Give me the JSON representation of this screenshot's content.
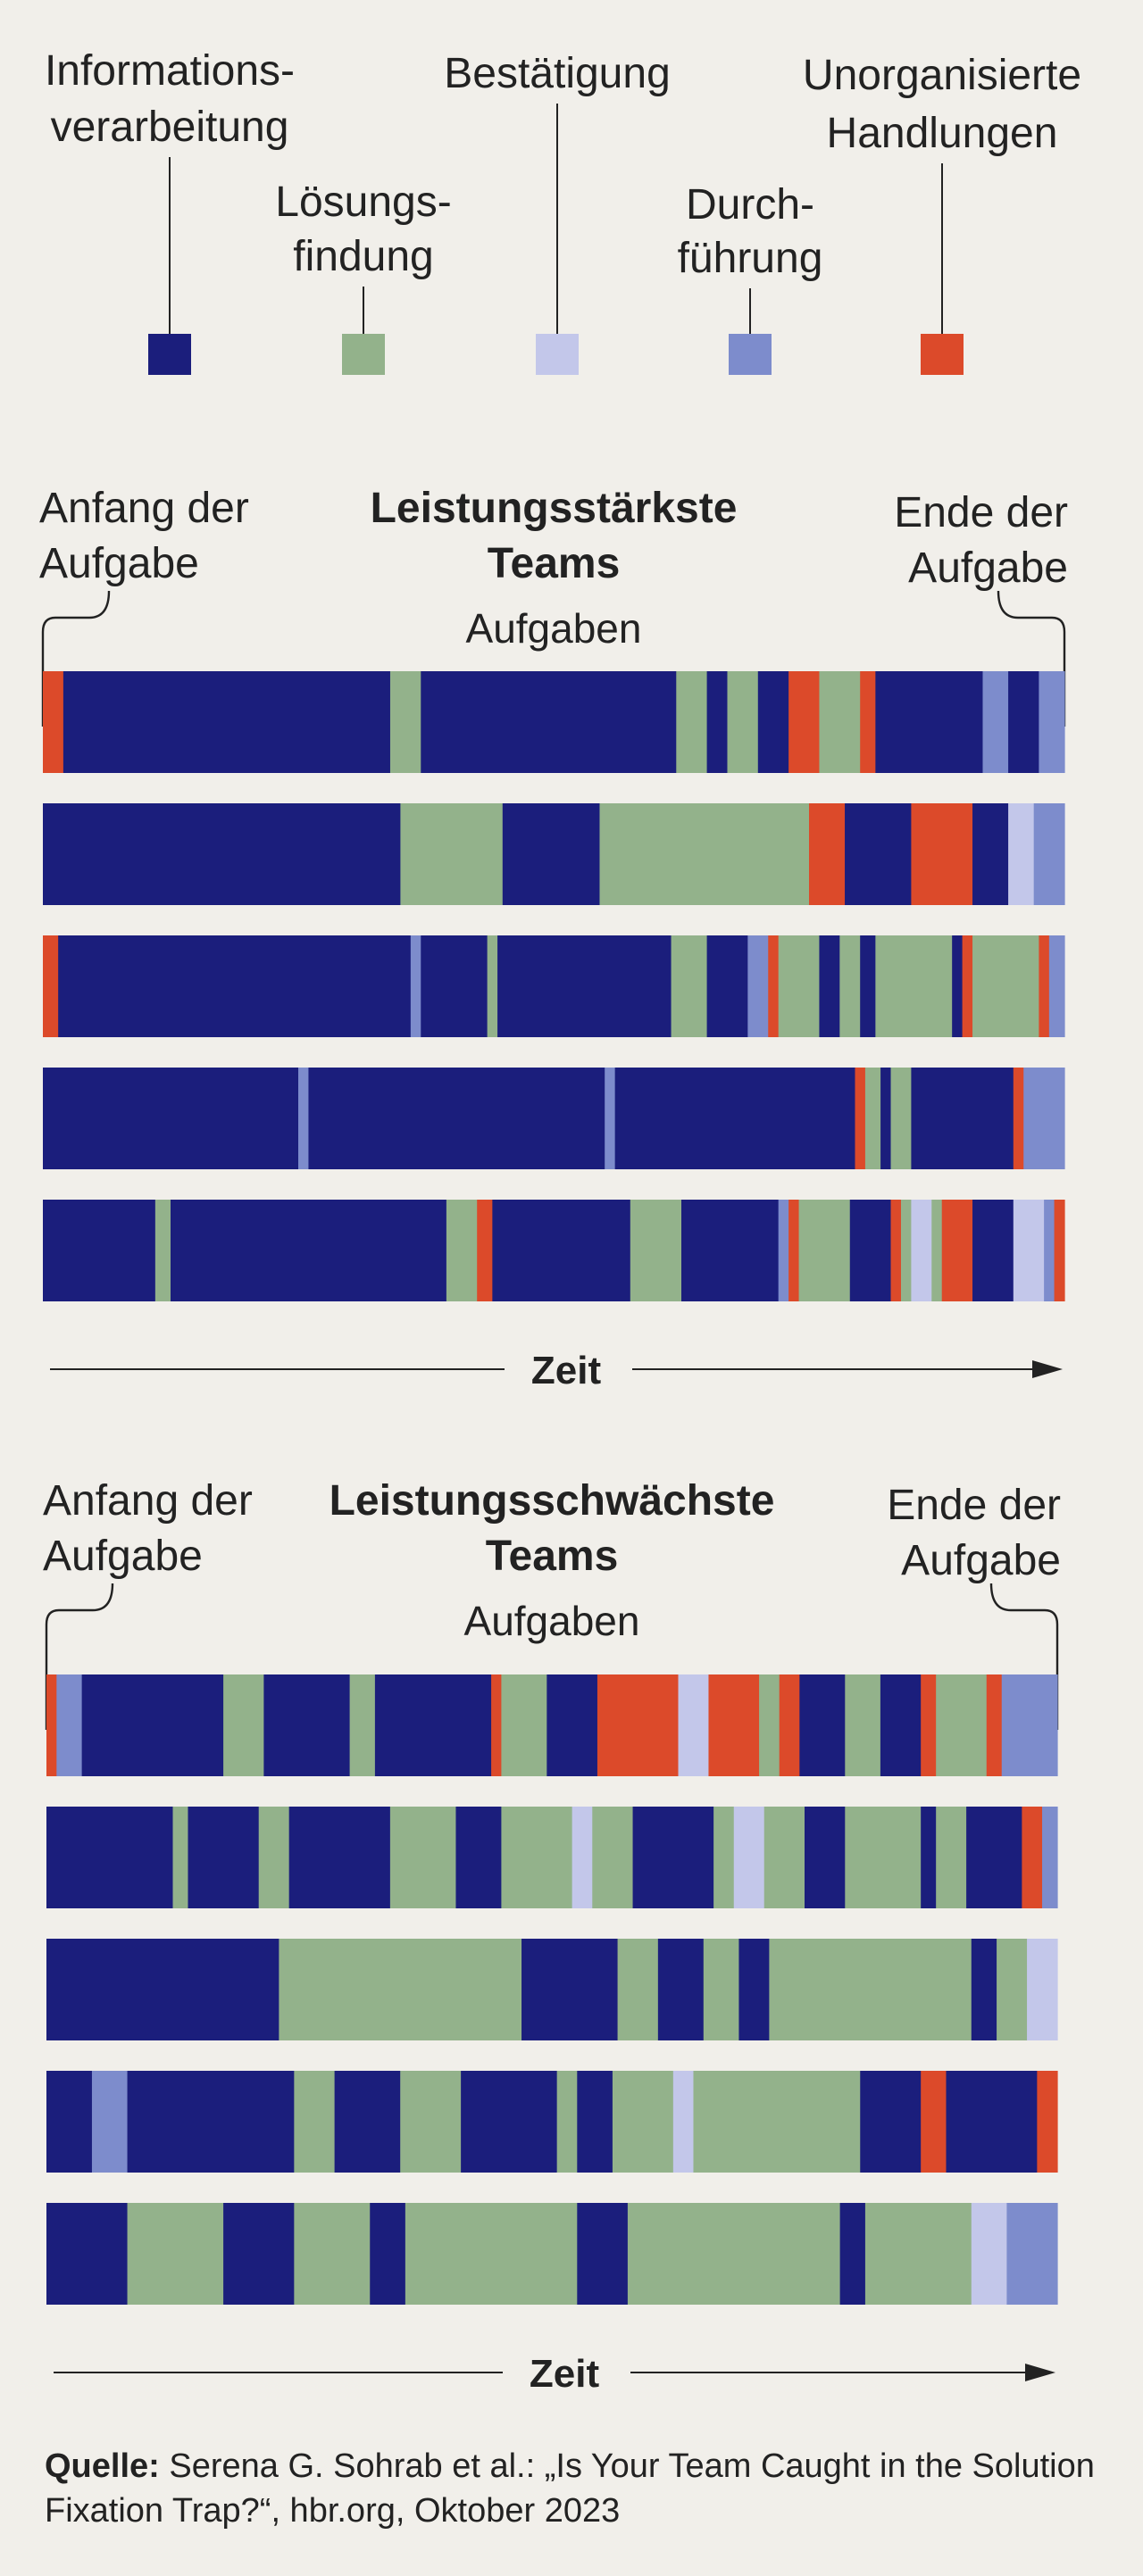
{
  "legend": [
    {
      "key": "info",
      "label_lines": [
        "Informations-",
        "verarbeitung"
      ],
      "color": "#1b1e7c"
    },
    {
      "key": "loes",
      "label_lines": [
        "Lösungs-",
        "findung"
      ],
      "color": "#93b28b"
    },
    {
      "key": "best",
      "label_lines": [
        "Bestätigung"
      ],
      "color": "#c3c7ea"
    },
    {
      "key": "durch",
      "label_lines": [
        "Durch-",
        "führung"
      ],
      "color": "#7d8ccc"
    },
    {
      "key": "unorg",
      "label_lines": [
        "Unorganisierte",
        "Handlungen"
      ],
      "color": "#dc4a2a"
    }
  ],
  "sections": [
    {
      "title_lines": [
        "Leistungsstärkste",
        "Teams"
      ],
      "subtitle": "Aufgaben",
      "start_label": [
        "Anfang der",
        "Aufgabe"
      ],
      "end_label": [
        "Ende der",
        "Aufgabe"
      ],
      "axis_label": "Zeit"
    },
    {
      "title_lines": [
        "Leistungsschwächste",
        "Teams"
      ],
      "subtitle": "Aufgaben",
      "start_label": [
        "Anfang der",
        "Aufgabe"
      ],
      "end_label": [
        "Ende der",
        "Aufgabe"
      ],
      "axis_label": "Zeit"
    }
  ],
  "source": {
    "prefix": "Quelle:",
    "text": " Serena G. Sohrab et al.: „Is Your Team Caught in the Solution Fixation Trap?“, hbr.org, Oktober 2023"
  },
  "chart_data": {
    "type": "timeline",
    "x_axis": "Zeit",
    "x_range": [
      0,
      100
    ],
    "x_unit": "approximate % of task duration",
    "groups": [
      {
        "name": "Leistungsstärkste Teams",
        "rows": [
          [
            [
              "unorg",
              0,
              2
            ],
            [
              "info",
              2,
              34
            ],
            [
              "loes",
              34,
              37
            ],
            [
              "info",
              37,
              62
            ],
            [
              "loes",
              62,
              65
            ],
            [
              "info",
              65,
              67
            ],
            [
              "loes",
              67,
              70
            ],
            [
              "info",
              70,
              73
            ],
            [
              "unorg",
              73,
              76
            ],
            [
              "loes",
              76,
              80
            ],
            [
              "unorg",
              80,
              81.5
            ],
            [
              "info",
              81.5,
              92
            ],
            [
              "durch",
              92,
              94.5
            ],
            [
              "info",
              94.5,
              97.5
            ],
            [
              "durch",
              97.5,
              100
            ]
          ],
          [
            [
              "info",
              0,
              35
            ],
            [
              "loes",
              35,
              45
            ],
            [
              "info",
              45,
              54.5
            ],
            [
              "loes",
              54.5,
              75
            ],
            [
              "unorg",
              75,
              78.5
            ],
            [
              "info",
              78.5,
              85
            ],
            [
              "unorg",
              85,
              91
            ],
            [
              "info",
              91,
              94.5
            ],
            [
              "best",
              94.5,
              97
            ],
            [
              "durch",
              97,
              100
            ]
          ],
          [
            [
              "unorg",
              0,
              1.5
            ],
            [
              "info",
              1.5,
              36
            ],
            [
              "durch",
              36,
              37
            ],
            [
              "info",
              37,
              43.5
            ],
            [
              "loes",
              43.5,
              44.5
            ],
            [
              "info",
              44.5,
              61.5
            ],
            [
              "loes",
              61.5,
              65
            ],
            [
              "info",
              65,
              69
            ],
            [
              "durch",
              69,
              71
            ],
            [
              "unorg",
              71,
              72
            ],
            [
              "loes",
              72,
              76
            ],
            [
              "info",
              76,
              78
            ],
            [
              "loes",
              78,
              80
            ],
            [
              "info",
              80,
              81.5
            ],
            [
              "loes",
              81.5,
              89
            ],
            [
              "info",
              89,
              90
            ],
            [
              "unorg",
              90,
              91
            ],
            [
              "loes",
              91,
              97.5
            ],
            [
              "unorg",
              97.5,
              98.5
            ],
            [
              "durch",
              98.5,
              100
            ]
          ],
          [
            [
              "info",
              0,
              25
            ],
            [
              "durch",
              25,
              26
            ],
            [
              "info",
              26,
              55
            ],
            [
              "durch",
              55,
              56
            ],
            [
              "info",
              56,
              79.5
            ],
            [
              "unorg",
              79.5,
              80.5
            ],
            [
              "loes",
              80.5,
              82
            ],
            [
              "info",
              82,
              83
            ],
            [
              "loes",
              83,
              85
            ],
            [
              "info",
              85,
              95
            ],
            [
              "unorg",
              95,
              96
            ],
            [
              "durch",
              96,
              100
            ]
          ],
          [
            [
              "info",
              0,
              11
            ],
            [
              "loes",
              11,
              12.5
            ],
            [
              "info",
              12.5,
              39.5
            ],
            [
              "loes",
              39.5,
              42.5
            ],
            [
              "unorg",
              42.5,
              44
            ],
            [
              "info",
              44,
              57.5
            ],
            [
              "loes",
              57.5,
              62.5
            ],
            [
              "info",
              62.5,
              72
            ],
            [
              "durch",
              72,
              73
            ],
            [
              "unorg",
              73,
              74
            ],
            [
              "loes",
              74,
              79
            ],
            [
              "info",
              79,
              83
            ],
            [
              "unorg",
              83,
              84
            ],
            [
              "loes",
              84,
              85
            ],
            [
              "best",
              85,
              87
            ],
            [
              "loes",
              87,
              88
            ],
            [
              "unorg",
              88,
              91
            ],
            [
              "info",
              91,
              95
            ],
            [
              "best",
              95,
              98
            ],
            [
              "durch",
              98,
              99
            ],
            [
              "unorg",
              99,
              100
            ]
          ]
        ]
      },
      {
        "name": "Leistungsschwächste Teams",
        "rows": [
          [
            [
              "unorg",
              0,
              1
            ],
            [
              "durch",
              1,
              3.5
            ],
            [
              "info",
              3.5,
              17.5
            ],
            [
              "loes",
              17.5,
              21.5
            ],
            [
              "info",
              21.5,
              30
            ],
            [
              "loes",
              30,
              32.5
            ],
            [
              "info",
              32.5,
              44
            ],
            [
              "unorg",
              44,
              45
            ],
            [
              "loes",
              45,
              49.5
            ],
            [
              "info",
              49.5,
              54.5
            ],
            [
              "unorg",
              54.5,
              62.5
            ],
            [
              "best",
              62.5,
              65.5
            ],
            [
              "unorg",
              65.5,
              70.5
            ],
            [
              "loes",
              70.5,
              72.5
            ],
            [
              "unorg",
              72.5,
              74.5
            ],
            [
              "info",
              74.5,
              79
            ],
            [
              "loes",
              79,
              82.5
            ],
            [
              "info",
              82.5,
              86.5
            ],
            [
              "unorg",
              86.5,
              88
            ],
            [
              "loes",
              88,
              93
            ],
            [
              "unorg",
              93,
              94.5
            ],
            [
              "durch",
              94.5,
              100
            ]
          ],
          [
            [
              "info",
              0,
              12.5
            ],
            [
              "loes",
              12.5,
              14
            ],
            [
              "info",
              14,
              21
            ],
            [
              "loes",
              21,
              24
            ],
            [
              "info",
              24,
              34
            ],
            [
              "loes",
              34,
              40.5
            ],
            [
              "info",
              40.5,
              45
            ],
            [
              "loes",
              45,
              52
            ],
            [
              "best",
              52,
              54
            ],
            [
              "loes",
              54,
              58
            ],
            [
              "info",
              58,
              66
            ],
            [
              "loes",
              66,
              68
            ],
            [
              "best",
              68,
              71
            ],
            [
              "loes",
              71,
              75
            ],
            [
              "info",
              75,
              79
            ],
            [
              "loes",
              79,
              86.5
            ],
            [
              "info",
              86.5,
              88
            ],
            [
              "loes",
              88,
              91
            ],
            [
              "info",
              91,
              96.5
            ],
            [
              "unorg",
              96.5,
              98.5
            ],
            [
              "durch",
              98.5,
              100
            ]
          ],
          [
            [
              "info",
              0,
              23
            ],
            [
              "loes",
              23,
              47
            ],
            [
              "info",
              47,
              56.5
            ],
            [
              "loes",
              56.5,
              60.5
            ],
            [
              "info",
              60.5,
              65
            ],
            [
              "loes",
              65,
              68.5
            ],
            [
              "info",
              68.5,
              71.5
            ],
            [
              "loes",
              71.5,
              91.5
            ],
            [
              "info",
              91.5,
              94
            ],
            [
              "loes",
              94,
              97
            ],
            [
              "best",
              97,
              100
            ]
          ],
          [
            [
              "info",
              0,
              4.5
            ],
            [
              "durch",
              4.5,
              8
            ],
            [
              "info",
              8,
              24.5
            ],
            [
              "loes",
              24.5,
              28.5
            ],
            [
              "info",
              28.5,
              35
            ],
            [
              "loes",
              35,
              41
            ],
            [
              "info",
              41,
              50.5
            ],
            [
              "loes",
              50.5,
              52.5
            ],
            [
              "info",
              52.5,
              56
            ],
            [
              "loes",
              56,
              62
            ],
            [
              "best",
              62,
              64
            ],
            [
              "loes",
              64,
              80.5
            ],
            [
              "info",
              80.5,
              86.5
            ],
            [
              "unorg",
              86.5,
              89
            ],
            [
              "info",
              89,
              98
            ],
            [
              "unorg",
              98,
              100
            ]
          ],
          [
            [
              "info",
              0,
              8
            ],
            [
              "loes",
              8,
              17.5
            ],
            [
              "info",
              17.5,
              24.5
            ],
            [
              "loes",
              24.5,
              32
            ],
            [
              "info",
              32,
              35.5
            ],
            [
              "loes",
              35.5,
              52.5
            ],
            [
              "info",
              52.5,
              57.5
            ],
            [
              "loes",
              57.5,
              78.5
            ],
            [
              "info",
              78.5,
              81
            ],
            [
              "loes",
              81,
              91.5
            ],
            [
              "best",
              91.5,
              95
            ],
            [
              "durch",
              95,
              100
            ]
          ]
        ]
      }
    ]
  }
}
